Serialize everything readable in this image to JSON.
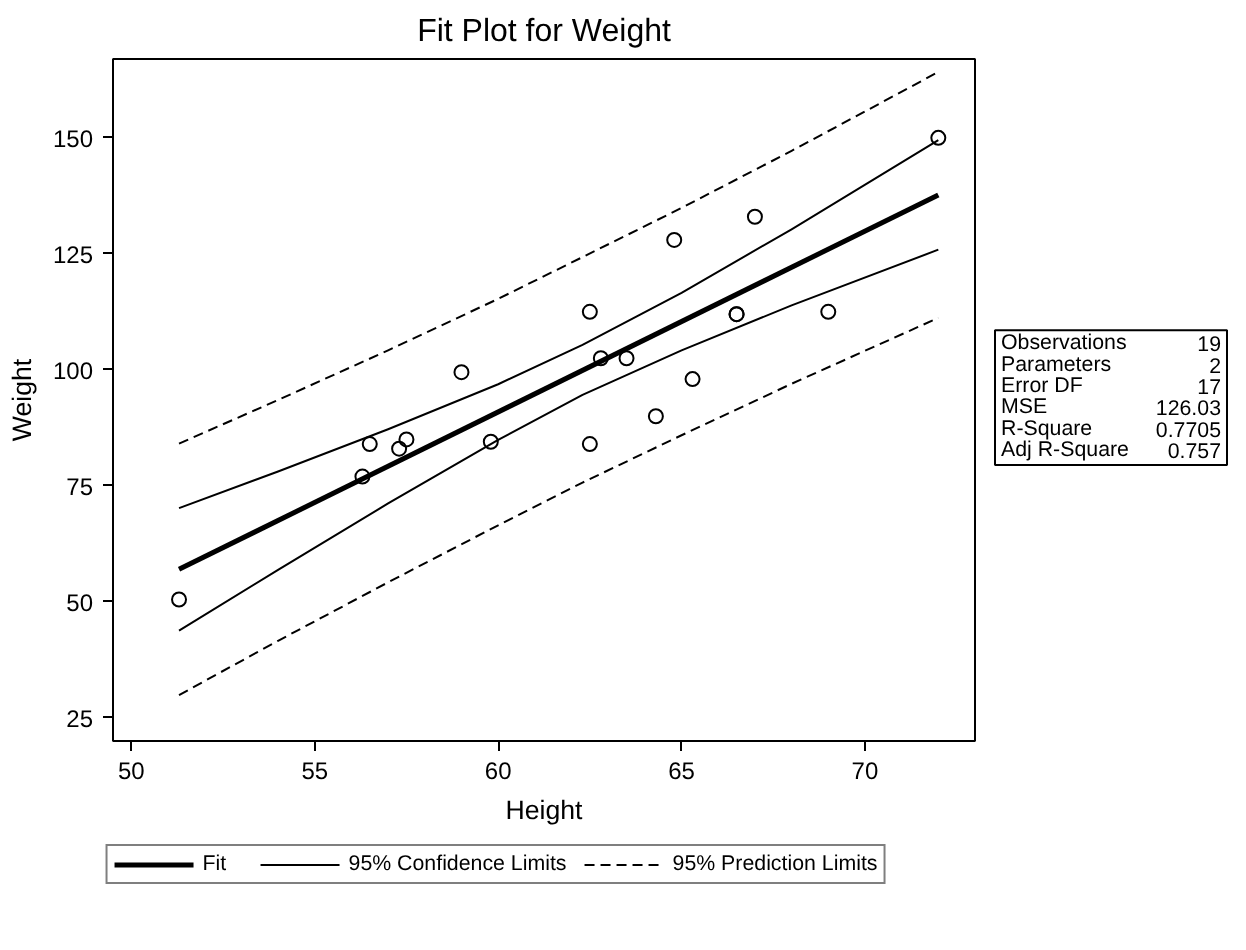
{
  "chart_data": {
    "type": "scatter",
    "title": "Fit Plot for Weight",
    "xlabel": "Height",
    "ylabel": "Weight",
    "xlim": [
      49.5,
      73
    ],
    "ylim": [
      20,
      167
    ],
    "xticks": [
      50,
      55,
      60,
      65,
      70
    ],
    "yticks": [
      25,
      50,
      75,
      100,
      125,
      150
    ],
    "grid": false,
    "legend": "bottom",
    "series": [
      {
        "type": "scatter",
        "marker": "circle",
        "color": "#000000",
        "x": [
          69.0,
          56.5,
          65.3,
          62.8,
          63.5,
          57.3,
          59.8,
          62.5,
          62.5,
          59.0,
          51.3,
          64.3,
          56.3,
          66.5,
          72.0,
          64.8,
          67.0,
          57.5,
          66.5
        ],
        "values": [
          112.5,
          84.0,
          98.0,
          102.5,
          102.5,
          83.0,
          84.5,
          112.5,
          84.0,
          99.5,
          50.5,
          90.0,
          77.0,
          112.0,
          150.0,
          128.0,
          133.0,
          85.0,
          112.0
        ]
      },
      {
        "type": "line",
        "name": "Fit",
        "color": "#000000",
        "line_style": "solid",
        "x": [
          51.3,
          72.0
        ],
        "values": [
          57.0,
          137.7
        ]
      },
      {
        "type": "line",
        "name": "95% Confidence Limits",
        "color": "#000000",
        "line_style": "solid",
        "x": [
          51.3,
          54,
          57,
          60,
          62.3,
          65,
          68,
          72,
          null,
          51.3,
          54,
          57,
          60,
          62.3,
          65,
          68,
          72
        ],
        "values": [
          43.8,
          56.9,
          71.2,
          84.9,
          94.6,
          104.2,
          113.9,
          125.9,
          null,
          70.2,
          78.1,
          87.2,
          96.9,
          105.4,
          116.6,
          130.3,
          149.5
        ]
      },
      {
        "type": "line",
        "name": "95% Prediction Limits",
        "color": "#000000",
        "line_style": "dashed",
        "x": [
          51.3,
          54,
          57,
          60,
          62.3,
          65,
          68,
          72,
          null,
          51.3,
          54,
          57,
          60,
          62.3,
          65,
          68,
          72
        ],
        "values": [
          29.9,
          41.6,
          54.2,
          66.5,
          75.7,
          85.9,
          97.0,
          111.2,
          null,
          84.1,
          93.5,
          104.2,
          115.3,
          124.3,
          134.9,
          147.2,
          164.2
        ]
      }
    ],
    "annotations": [
      "Observations 19",
      "Parameters 2",
      "Error DF 17",
      "MSE 126.03",
      "R-Square 0.7705",
      "Adj R-Square 0.757"
    ]
  }
}
